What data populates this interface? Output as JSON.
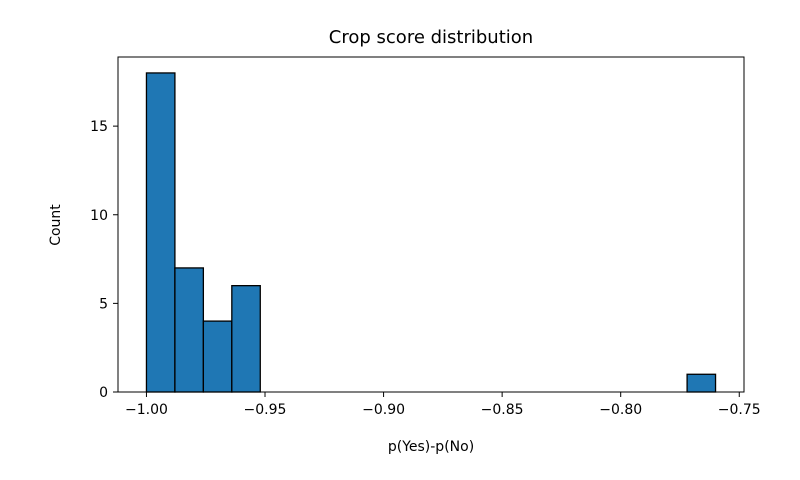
{
  "chart_data": {
    "type": "bar",
    "title": "Crop score distribution",
    "xlabel": "p(Yes)-p(No)",
    "ylabel": "Count",
    "xlim": [
      -1.012,
      -0.748
    ],
    "ylim": [
      0,
      18.9
    ],
    "bar_color": "#1f77b4",
    "edge_color": "#000000",
    "grid": false,
    "bins": [
      {
        "x0": -1.0,
        "x1": -0.988,
        "count": 18
      },
      {
        "x0": -0.988,
        "x1": -0.976,
        "count": 7
      },
      {
        "x0": -0.976,
        "x1": -0.964,
        "count": 4
      },
      {
        "x0": -0.964,
        "x1": -0.952,
        "count": 6
      },
      {
        "x0": -0.952,
        "x1": -0.94,
        "count": 0
      },
      {
        "x0": -0.94,
        "x1": -0.928,
        "count": 0
      },
      {
        "x0": -0.928,
        "x1": -0.916,
        "count": 0
      },
      {
        "x0": -0.916,
        "x1": -0.904,
        "count": 0
      },
      {
        "x0": -0.904,
        "x1": -0.892,
        "count": 0
      },
      {
        "x0": -0.892,
        "x1": -0.88,
        "count": 0
      },
      {
        "x0": -0.88,
        "x1": -0.868,
        "count": 0
      },
      {
        "x0": -0.868,
        "x1": -0.856,
        "count": 0
      },
      {
        "x0": -0.856,
        "x1": -0.844,
        "count": 0
      },
      {
        "x0": -0.844,
        "x1": -0.832,
        "count": 0
      },
      {
        "x0": -0.832,
        "x1": -0.82,
        "count": 0
      },
      {
        "x0": -0.82,
        "x1": -0.808,
        "count": 0
      },
      {
        "x0": -0.808,
        "x1": -0.796,
        "count": 0
      },
      {
        "x0": -0.796,
        "x1": -0.784,
        "count": 0
      },
      {
        "x0": -0.784,
        "x1": -0.772,
        "count": 0
      },
      {
        "x0": -0.772,
        "x1": -0.76,
        "count": 1
      }
    ],
    "x_ticks": [
      {
        "value": -1.0,
        "label": "−1.00"
      },
      {
        "value": -0.95,
        "label": "−0.95"
      },
      {
        "value": -0.9,
        "label": "−0.90"
      },
      {
        "value": -0.85,
        "label": "−0.85"
      },
      {
        "value": -0.8,
        "label": "−0.80"
      },
      {
        "value": -0.75,
        "label": "−0.75"
      }
    ],
    "y_ticks": [
      {
        "value": 0,
        "label": "0"
      },
      {
        "value": 5,
        "label": "5"
      },
      {
        "value": 10,
        "label": "10"
      },
      {
        "value": 15,
        "label": "15"
      }
    ]
  }
}
